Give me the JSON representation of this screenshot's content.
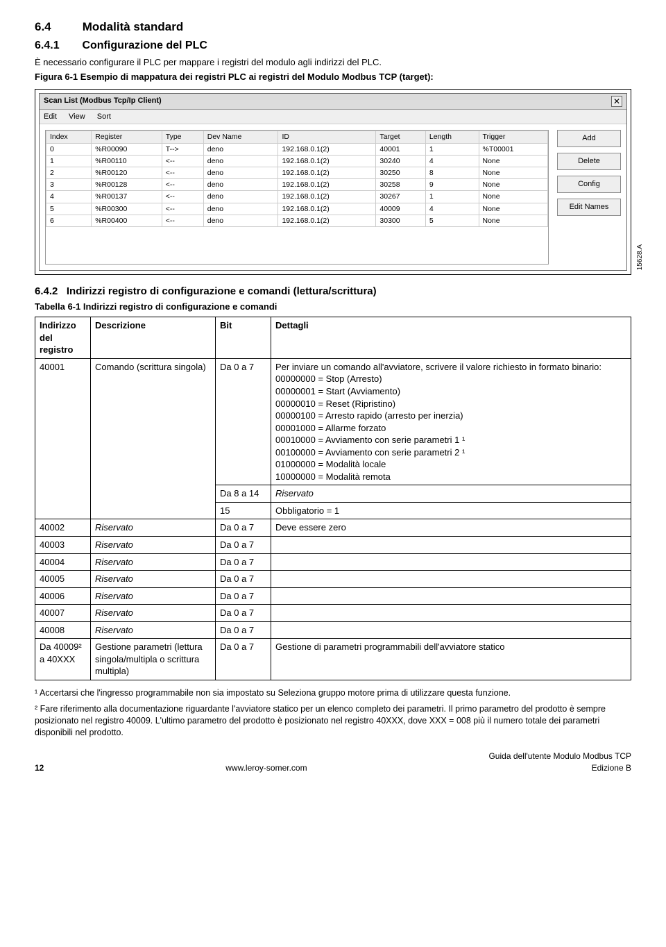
{
  "section": {
    "num1": "6.4",
    "title1": "Modalità standard",
    "num2": "6.4.1",
    "title2": "Configurazione del PLC",
    "intro": "È necessario configurare il PLC per mappare i registri del modulo agli indirizzi del PLC.",
    "figcaption": "Figura 6-1 Esempio di mappatura dei registri PLC ai registri del Modulo Modbus TCP (target):",
    "figlabel": "15628.A",
    "num3": "6.4.2",
    "title3": "Indirizzi registro di configurazione e comandi (lettura/scrittura)",
    "tabcaption": "Tabella 6-1 Indirizzi registro di configurazione e comandi"
  },
  "window": {
    "title": "Scan List (Modbus Tcp/Ip Client)",
    "menu": [
      "Edit",
      "View",
      "Sort"
    ],
    "columns": [
      "Index",
      "Register",
      "Type",
      "Dev Name",
      "ID",
      "Target",
      "Length",
      "Trigger"
    ],
    "rows": [
      [
        "0",
        "%R00090",
        "T-->",
        "deno",
        "192.168.0.1(2)",
        "40001",
        "1",
        "%T00001"
      ],
      [
        "1",
        "%R00110",
        "<--",
        "deno",
        "192.168.0.1(2)",
        "30240",
        "4",
        "None"
      ],
      [
        "2",
        "%R00120",
        "<--",
        "deno",
        "192.168.0.1(2)",
        "30250",
        "8",
        "None"
      ],
      [
        "3",
        "%R00128",
        "<--",
        "deno",
        "192.168.0.1(2)",
        "30258",
        "9",
        "None"
      ],
      [
        "4",
        "%R00137",
        "<--",
        "deno",
        "192.168.0.1(2)",
        "30267",
        "1",
        "None"
      ],
      [
        "5",
        "%R00300",
        "<--",
        "deno",
        "192.168.0.1(2)",
        "40009",
        "4",
        "None"
      ],
      [
        "6",
        "%R00400",
        "<--",
        "deno",
        "192.168.0.1(2)",
        "30300",
        "5",
        "None"
      ]
    ],
    "buttons": [
      "Add",
      "Delete",
      "Config",
      "Edit Names"
    ]
  },
  "datatable": {
    "headers": [
      "Indirizzo del registro",
      "Descrizione",
      "Bit",
      "Dettagli"
    ],
    "row1": {
      "addr": "40001",
      "desc": "Comando (scrittura singola)",
      "bit1": "Da 0 a 7",
      "det1_intro": "Per inviare un comando all'avviatore, scrivere il valore richiesto in formato binario:",
      "det1_lines": [
        "00000000 = Stop (Arresto)",
        "00000001 = Start (Avviamento)",
        "00000010 = Reset (Ripristino)",
        "00000100 = Arresto rapido (arresto per inerzia)",
        "00001000 = Allarme forzato",
        "00010000 = Avviamento con serie parametri 1 ¹",
        "00100000 = Avviamento con serie parametri 2 ¹",
        "01000000 = Modalità locale",
        "10000000 = Modalità remota"
      ],
      "bit2": "Da 8 a 14",
      "det2": "Riservato",
      "bit3": "15",
      "det3": "Obbligatorio = 1"
    },
    "row2": {
      "addr": "40002",
      "desc": "Riservato",
      "bit": "Da 0 a 7",
      "det": "Deve essere zero"
    },
    "row3": {
      "addr": "40003",
      "desc": "Riservato",
      "bit": "Da 0 a 7",
      "det": ""
    },
    "row4": {
      "addr": "40004",
      "desc": "Riservato",
      "bit": "Da 0 a 7",
      "det": ""
    },
    "row5": {
      "addr": "40005",
      "desc": "Riservato",
      "bit": "Da 0 a 7",
      "det": ""
    },
    "row6": {
      "addr": "40006",
      "desc": "Riservato",
      "bit": "Da 0 a 7",
      "det": ""
    },
    "row7": {
      "addr": "40007",
      "desc": "Riservato",
      "bit": "Da 0 a 7",
      "det": ""
    },
    "row8": {
      "addr": "40008",
      "desc": "Riservato",
      "bit": "Da 0 a 7",
      "det": ""
    },
    "row9": {
      "addr": "Da 40009² a 40XXX",
      "desc": "Gestione parametri (lettura singola/multipla o scrittura multipla)",
      "bit": "Da 0 a 7",
      "det": "Gestione di parametri programmabili dell'avviatore statico"
    }
  },
  "footnotes": {
    "f1": "¹ Accertarsi che l'ingresso programmabile non sia impostato su Seleziona gruppo motore prima di utilizzare questa funzione.",
    "f2": "² Fare riferimento alla documentazione riguardante l'avviatore statico per un elenco completo dei parametri. Il primo parametro del prodotto è sempre posizionato nel registro 40009. L'ultimo parametro del prodotto è posizionato nel registro 40XXX, dove XXX = 008 più il numero totale dei parametri disponibili nel prodotto."
  },
  "footer": {
    "page": "12",
    "center": "www.leroy-somer.com",
    "right1": "Guida dell'utente Modulo Modbus TCP",
    "right2": "Edizione B"
  }
}
